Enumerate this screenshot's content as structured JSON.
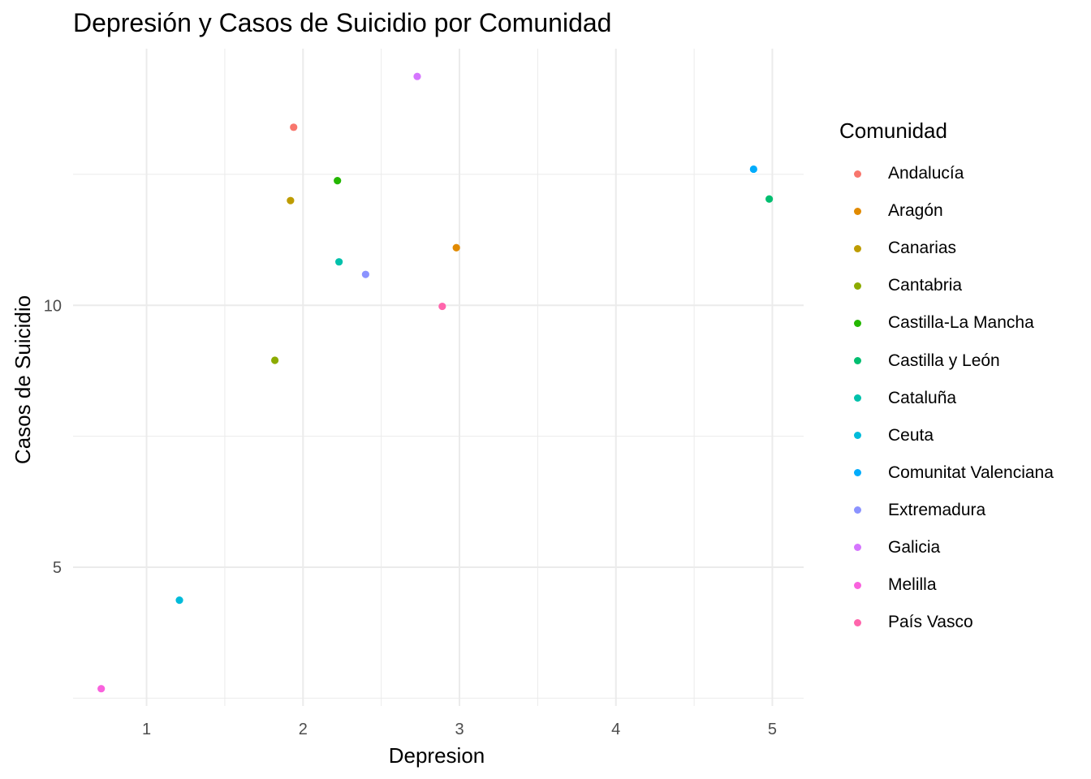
{
  "chart_data": {
    "type": "scatter",
    "title": "Depresión y Casos de Suicidio por Comunidad",
    "xlabel": "Depresion",
    "ylabel": "Casos de Suicidio",
    "xlim": [
      0.53,
      5.2
    ],
    "ylim": [
      2.35,
      14.9
    ],
    "xticks": [
      1,
      2,
      3,
      4,
      5
    ],
    "yticks": [
      5,
      10
    ],
    "x_minor_grid": [
      1.5,
      2.5,
      3.5,
      4.5
    ],
    "y_minor_grid": [
      2.5,
      7.5,
      12.5
    ],
    "grid": true,
    "legend": {
      "title": "Comunidad",
      "position": "right"
    },
    "series": [
      {
        "name": "Andalucía",
        "color": "#F8766D",
        "x": 1.94,
        "y": 13.4
      },
      {
        "name": "Aragón",
        "color": "#E18A00",
        "x": 2.98,
        "y": 11.1
      },
      {
        "name": "Canarias",
        "color": "#BE9C00",
        "x": 1.92,
        "y": 12.0
      },
      {
        "name": "Cantabria",
        "color": "#8CAB00",
        "x": 1.82,
        "y": 8.95
      },
      {
        "name": "Castilla-La Mancha",
        "color": "#24B700",
        "x": 2.22,
        "y": 12.38
      },
      {
        "name": "Castilla y León",
        "color": "#00BE70",
        "x": 4.98,
        "y": 12.03
      },
      {
        "name": "Cataluña",
        "color": "#00C1AB",
        "x": 2.23,
        "y": 10.83
      },
      {
        "name": "Ceuta",
        "color": "#00BBDA",
        "x": 1.21,
        "y": 4.37
      },
      {
        "name": "Comunitat Valenciana",
        "color": "#00ACFC",
        "x": 4.88,
        "y": 12.6
      },
      {
        "name": "Extremadura",
        "color": "#8B93FF",
        "x": 2.4,
        "y": 10.59
      },
      {
        "name": "Galicia",
        "color": "#D575FE",
        "x": 2.73,
        "y": 14.37
      },
      {
        "name": "Melilla",
        "color": "#F962DD",
        "x": 0.71,
        "y": 2.68
      },
      {
        "name": "País Vasco",
        "color": "#FF65AC",
        "x": 2.89,
        "y": 9.98
      }
    ]
  }
}
